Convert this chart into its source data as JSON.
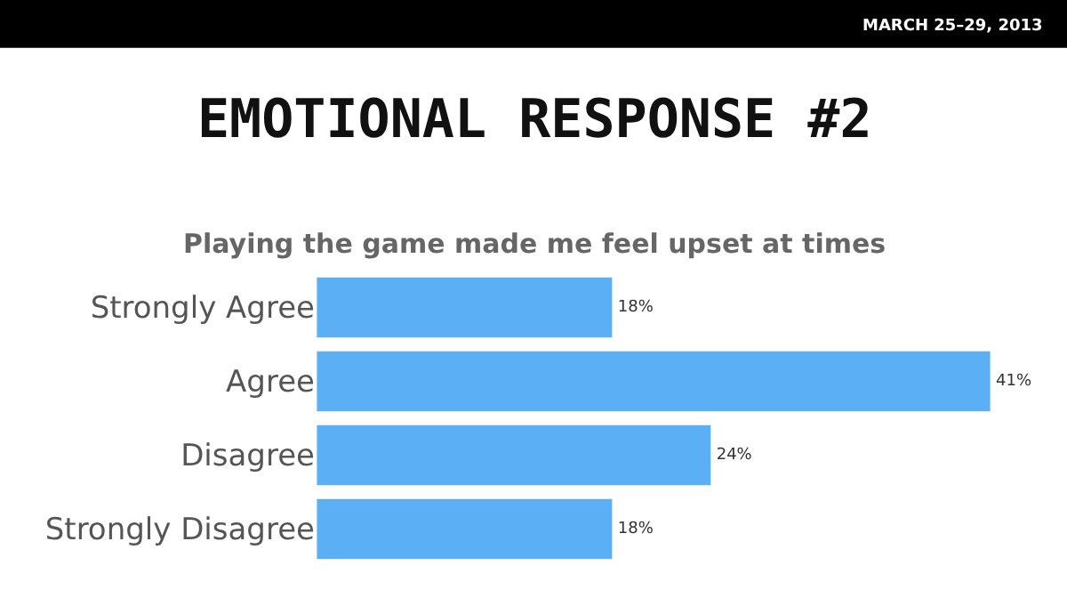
{
  "chart_data": {
    "type": "bar",
    "orientation": "horizontal",
    "title": "EMOTIONAL RESPONSE #2",
    "subtitle": "Playing the game made me feel upset at times",
    "categories": [
      "Strongly Agree",
      "Agree",
      "Disagree",
      "Strongly Disagree"
    ],
    "values": [
      18,
      41,
      24,
      18
    ],
    "value_labels": [
      "18%",
      "41%",
      "24%",
      "18%"
    ],
    "color": "#5aaff5",
    "annotations": [
      "MARCH 25–29, 2013"
    ],
    "legend": false
  }
}
